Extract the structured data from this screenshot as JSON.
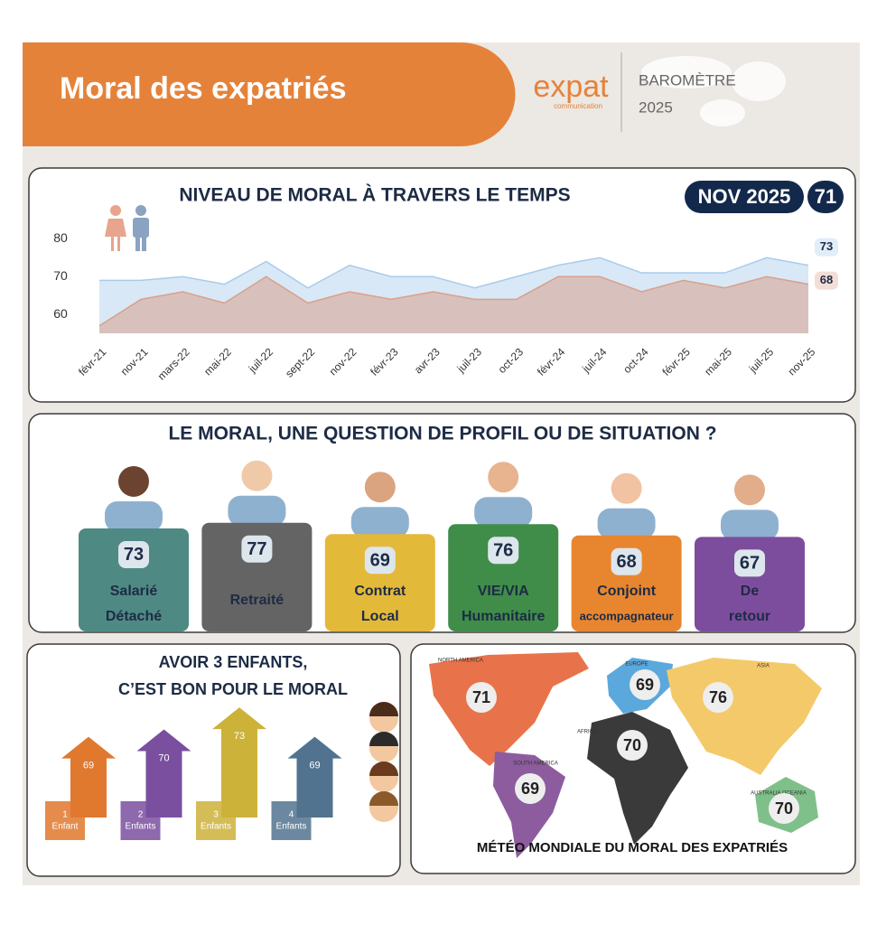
{
  "header": {
    "title": "Moral des expatriés",
    "logo": "expat",
    "logo_tagline": "communication",
    "label": "BAROMÈTRE",
    "year": "2025"
  },
  "chart_data": [
    {
      "type": "area",
      "title": "NIVEAU DE MORAL À TRAVERS LE TEMPS",
      "badge": "NOV 2025",
      "badge_value": 71,
      "categories": [
        "févr-21",
        "nov-21",
        "mars-22",
        "mai-22",
        "juil-22",
        "sept-22",
        "nov-22",
        "févr-23",
        "avr-23",
        "juil-23",
        "oct-23",
        "févr-24",
        "juil-24",
        "oct-24",
        "févr-25",
        "mai-25",
        "juil-25",
        "nov-25"
      ],
      "series": [
        {
          "color": "#a9cbec",
          "values": [
            69,
            69,
            70,
            68,
            74,
            67,
            73,
            70,
            70,
            67,
            70,
            73,
            75,
            71,
            71,
            71,
            75,
            73
          ]
        },
        {
          "color": "#d9a08c",
          "values": [
            57,
            64,
            66,
            63,
            70,
            63,
            66,
            64,
            66,
            64,
            64,
            70,
            70,
            66,
            69,
            67,
            70,
            68
          ]
        }
      ],
      "ylim": [
        55,
        82
      ],
      "yticks": [
        60,
        70,
        80
      ],
      "grid": false
    },
    {
      "type": "profile",
      "title": "LE MORAL, UNE QUESTION DE PROFIL OU DE SITUATION ?",
      "categories": [
        [
          "Salarié",
          "Détaché"
        ],
        [
          "Retraité"
        ],
        [
          "Contrat",
          "Local"
        ],
        [
          "VIE/VIA",
          "Humanitaire"
        ],
        [
          "Conjoint",
          "accompagnateur"
        ],
        [
          "De",
          "retour"
        ]
      ],
      "values": [
        73,
        77,
        69,
        76,
        68,
        67
      ],
      "colors": [
        "#4f8984",
        "#646464",
        "#e3b93a",
        "#3f8d49",
        "#e8862f",
        "#7d4d9d"
      ],
      "ylim": [
        0,
        80
      ]
    },
    {
      "type": "arrows",
      "title": [
        "AVOIR 3 ENFANTS,",
        "C’EST BON POUR LE MORAL"
      ],
      "categories": [
        [
          "1",
          "Enfant"
        ],
        [
          "2",
          "Enfants"
        ],
        [
          "3",
          "Enfants"
        ],
        [
          "4",
          "Enfants"
        ]
      ],
      "values": [
        69,
        70,
        73,
        69
      ],
      "colors": [
        "#e0782e",
        "#7a4fa0",
        "#cdb23a",
        "#52738f"
      ],
      "ylim": [
        58,
        74
      ]
    },
    {
      "type": "map",
      "title": "MÉTÉO MONDIALE DU MORAL DES EXPATRIÉS",
      "categories": [
        "NORTH AMERICA",
        "EUROPE",
        "ASIA",
        "AFRICA",
        "SOUTH AMERICA",
        "AUSTRALIA OCEANIA"
      ],
      "values": [
        71,
        69,
        76,
        70,
        69,
        70
      ],
      "colors": [
        "#e8734a",
        "#5aa8dc",
        "#f4c96a",
        "#3a3a3a",
        "#8d5c9e",
        "#7fc08a"
      ]
    }
  ]
}
